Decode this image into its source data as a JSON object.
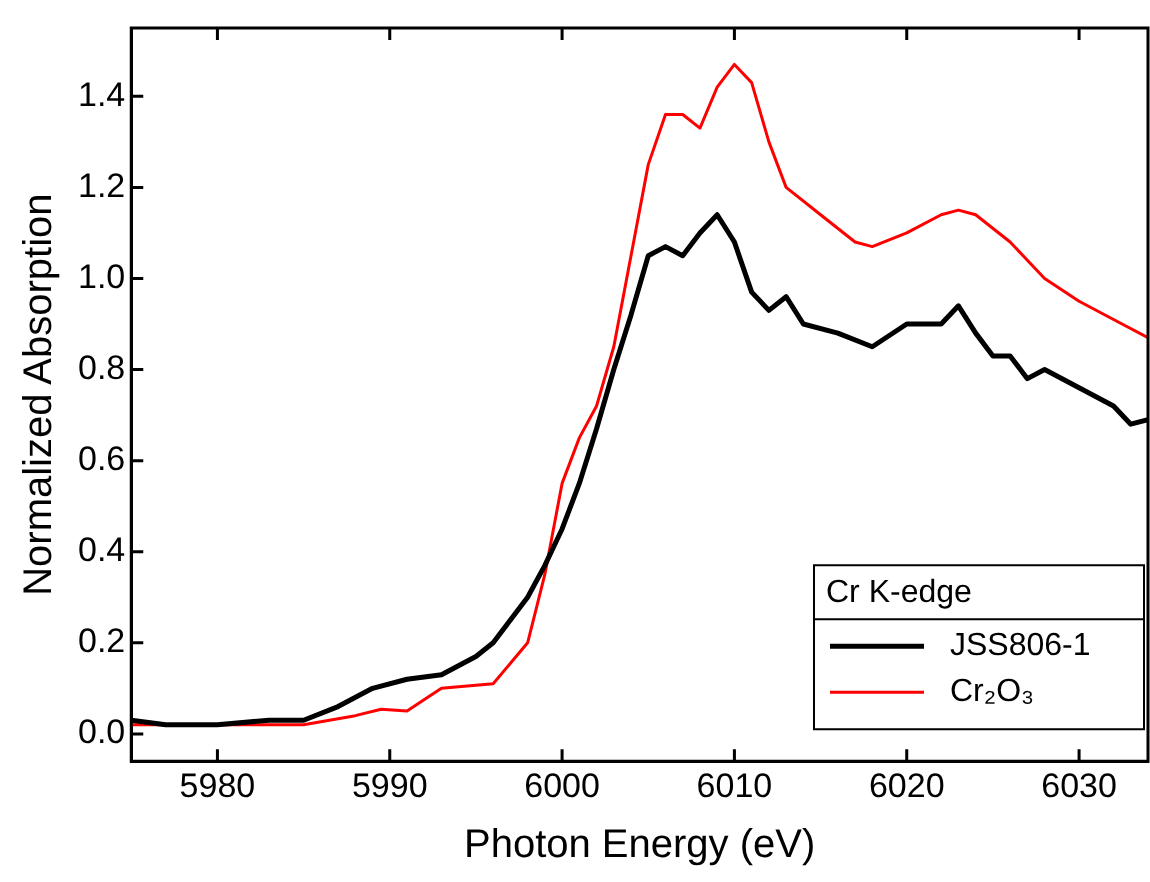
{
  "chart_data": {
    "type": "line",
    "xlabel": "Photon Energy (eV)",
    "ylabel": "Normalized Absorption",
    "legend_title": "Cr K-edge",
    "legend": "bottom right",
    "grid": false,
    "marker": "none",
    "line_style": "solid",
    "xlim": [
      5975,
      6034
    ],
    "ylim": [
      -0.06,
      1.55
    ],
    "xticks": [
      5980,
      5990,
      6000,
      6010,
      6020,
      6030
    ],
    "yticks": [
      {
        "value": 0,
        "label": "0.0"
      },
      {
        "value": 0.2,
        "label": "0.2"
      },
      {
        "value": 0.4,
        "label": "0.4"
      },
      {
        "value": 0.6,
        "label": "0.6"
      },
      {
        "value": 0.8,
        "label": "0.8"
      },
      {
        "value": 1,
        "label": "1.0"
      },
      {
        "value": 1.2,
        "label": "1.2"
      },
      {
        "value": 1.4,
        "label": "1.4"
      }
    ],
    "series": [
      {
        "name": "JSS806-1",
        "color": "#000000",
        "x": [
          5975,
          5977,
          5980,
          5983,
          5985,
          5987,
          5989,
          5991,
          5993,
          5995,
          5996,
          5997,
          5998,
          5999,
          6000,
          6001,
          6002,
          6003,
          6004,
          6005,
          6006,
          6007,
          6008,
          6009,
          6010,
          6011,
          6012,
          6013,
          6014,
          6016,
          6018,
          6020,
          6022,
          6023,
          6024,
          6025,
          6026,
          6027,
          6028,
          6030,
          6032,
          6033,
          6034
        ],
        "values": [
          0.03,
          0.02,
          0.02,
          0.03,
          0.03,
          0.06,
          0.1,
          0.12,
          0.13,
          0.17,
          0.2,
          0.25,
          0.3,
          0.37,
          0.45,
          0.55,
          0.67,
          0.8,
          0.92,
          1.05,
          1.07,
          1.05,
          1.1,
          1.14,
          1.08,
          0.97,
          0.93,
          0.96,
          0.9,
          0.88,
          0.85,
          0.9,
          0.9,
          0.94,
          0.88,
          0.83,
          0.83,
          0.78,
          0.8,
          0.76,
          0.72,
          0.68,
          0.69
        ]
      },
      {
        "name": "Cr₂O₃",
        "color": "#ff0000",
        "x": [
          5975,
          5985,
          5988,
          5989.5,
          5991,
          5993,
          5996,
          5998,
          5999,
          6000,
          6001,
          6002,
          6003,
          6004,
          6005,
          6006,
          6007,
          6008,
          6009,
          6010,
          6011,
          6012,
          6013,
          6015,
          6017,
          6018,
          6020,
          6022,
          6023,
          6024,
          6026,
          6028,
          6030,
          6032,
          6034
        ],
        "values": [
          0.02,
          0.02,
          0.04,
          0.054,
          0.05,
          0.1,
          0.11,
          0.2,
          0.35,
          0.55,
          0.65,
          0.72,
          0.85,
          1.05,
          1.25,
          1.36,
          1.36,
          1.33,
          1.42,
          1.47,
          1.43,
          1.3,
          1.2,
          1.14,
          1.08,
          1.07,
          1.1,
          1.14,
          1.15,
          1.14,
          1.08,
          1.0,
          0.95,
          0.91,
          0.87
        ]
      }
    ]
  }
}
